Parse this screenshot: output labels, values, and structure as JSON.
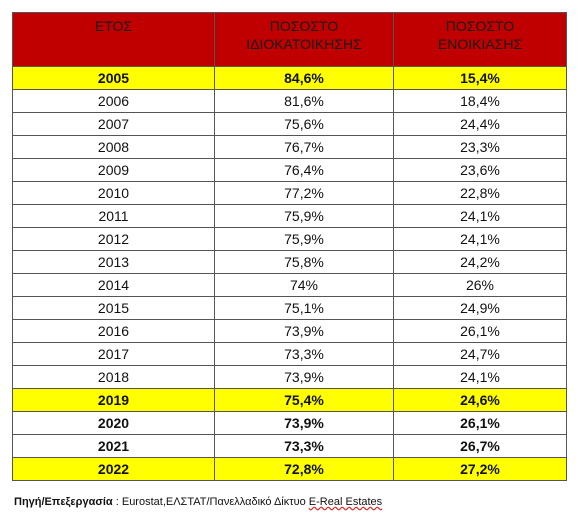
{
  "table": {
    "header": [
      "ΕΤΟΣ",
      "ΠΟΣΟΣΤΟ\nΙΔΙΟΚΑΤΟΙΚΗΣΗΣ",
      "ΠΟΣΟΣΤΟ\nΕΝΟΙΚΙΑΣΗΣ"
    ],
    "rows": [
      [
        "2005",
        "84,6%",
        "15,4%"
      ],
      [
        "2006",
        "81,6%",
        "18,4%"
      ],
      [
        "2007",
        "75,6%",
        "24,4%"
      ],
      [
        "2008",
        "76,7%",
        "23,3%"
      ],
      [
        "2009",
        "76,4%",
        "23,6%"
      ],
      [
        "2010",
        "77,2%",
        "22,8%"
      ],
      [
        "2011",
        "75,9%",
        "24,1%"
      ],
      [
        "2012",
        "75,9%",
        "24,1%"
      ],
      [
        "2013",
        "75,8%",
        "24,2%"
      ],
      [
        "2014",
        "74%",
        "26%"
      ],
      [
        "2015",
        "75,1%",
        "24,9%"
      ],
      [
        "2016",
        "73,9%",
        "26,1%"
      ],
      [
        "2017",
        "73,3%",
        "24,7%"
      ],
      [
        "2018",
        "73,9%",
        "24,1%"
      ],
      [
        "2019",
        "75,4%",
        "24,6%"
      ],
      [
        "2020",
        "73,9%",
        "26,1%"
      ],
      [
        "2021",
        "73,3%",
        "26,7%"
      ],
      [
        "2022",
        "72,8%",
        "27,2%"
      ]
    ]
  },
  "source": {
    "label": "Πηγή/Επεξεργασία",
    "text": " : Eurostat,ΕΛΣΤΑΤ/Πανελλαδικό Δίκτυο ",
    "link": "E-Real Estates"
  }
}
